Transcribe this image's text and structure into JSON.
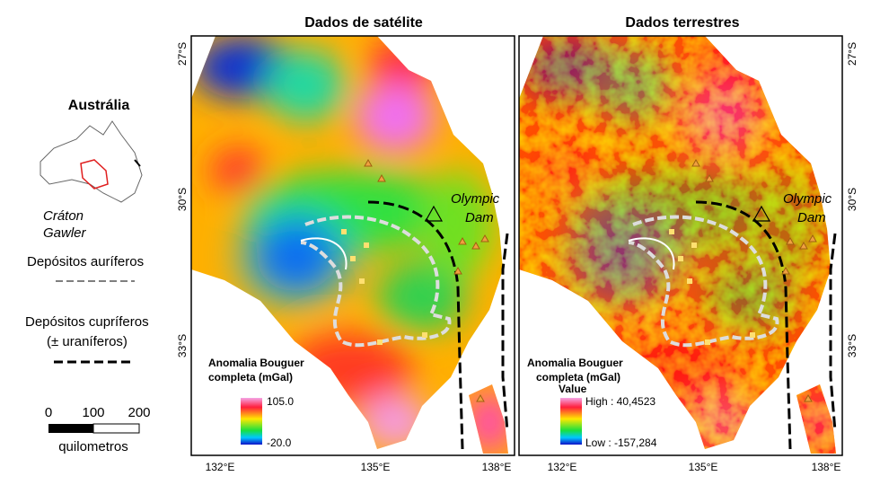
{
  "titles": [
    "Dados de satélite",
    "Dados terrestres"
  ],
  "legend": {
    "inset_title": "Austrália",
    "craton": [
      "Cráton",
      "Gawler"
    ],
    "gold": "Depósitos auríferos",
    "copper": [
      "Depósitos cupríferos",
      "(± uraníferos)"
    ],
    "scale": [
      "0",
      "100",
      "200"
    ],
    "scale_unit": "quilometros"
  },
  "latitudes": [
    "27°S",
    "30°S",
    "33°S"
  ],
  "longitudes": [
    "132°E",
    "135°E",
    "138°E"
  ],
  "place": [
    "Olympic",
    "Dam"
  ],
  "panels": [
    {
      "colorbar": {
        "title": [
          "Anomalia Bouguer",
          "completa (mGal)"
        ],
        "max": "105.0",
        "min": "-20.0"
      }
    },
    {
      "colorbar": {
        "title": [
          "Anomalia Bouguer",
          "completa (mGal)"
        ],
        "value": "Value",
        "max": "High : 40,4523",
        "min": "Low : -157,284"
      }
    }
  ]
}
